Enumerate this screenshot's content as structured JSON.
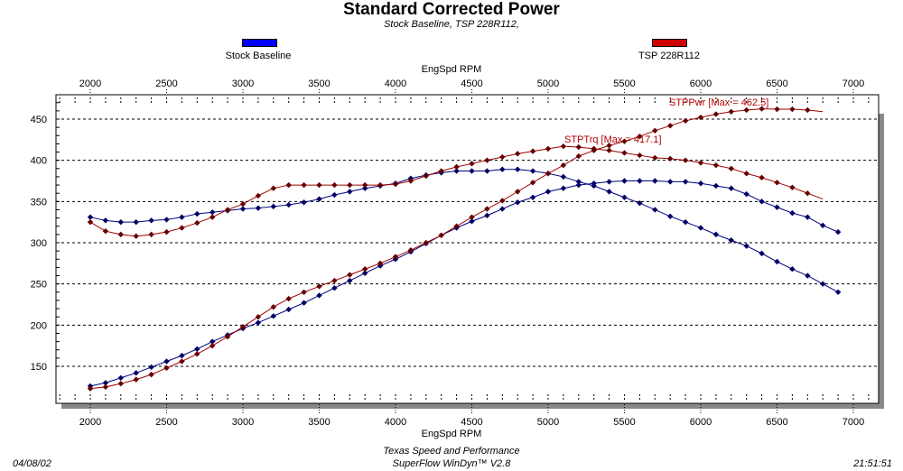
{
  "chart_data": {
    "type": "line",
    "title": "Standard Corrected Power",
    "subtitle": "Stock Baseline, TSP 228R112,",
    "xlabel": "EngSpd  RPM",
    "ylabel": "",
    "xlim": [
      1800,
      7100
    ],
    "ylim": [
      115,
      475
    ],
    "xticks": [
      2000,
      2500,
      3000,
      3500,
      4000,
      4500,
      5000,
      5500,
      6000,
      6500,
      7000
    ],
    "yticks": [
      150,
      200,
      250,
      300,
      350,
      400,
      450
    ],
    "grid": "horizontal dashed",
    "legend": [
      {
        "name": "Stock Baseline",
        "color": "#0000ff"
      },
      {
        "name": "TSP 228R112",
        "color": "#cc0000"
      }
    ],
    "annotations": [
      {
        "text": "STPPwr [Max = 462.5]",
        "color": "#b00000"
      },
      {
        "text": "STPTrq [Max = 417.1]",
        "color": "#b00000"
      }
    ],
    "series": [
      {
        "name": "Stock Baseline",
        "quantity": "STPTrq",
        "color": "#000066",
        "x_start": 2000,
        "x_step": 100,
        "values": [
          331,
          327,
          325,
          325,
          327,
          328,
          331,
          335,
          337,
          339,
          341,
          342,
          344,
          346,
          349,
          353,
          358,
          362,
          366,
          369,
          372,
          378,
          382,
          385,
          387,
          387,
          387,
          389,
          389,
          387,
          384,
          380,
          374,
          369,
          362,
          355,
          348,
          340,
          332,
          325,
          318,
          310,
          303,
          296,
          287,
          277,
          268,
          260,
          250,
          240
        ]
      },
      {
        "name": "Stock Baseline",
        "quantity": "STPPwr",
        "color": "#000066",
        "x_start": 2000,
        "x_step": 100,
        "values": [
          126,
          130,
          136,
          142,
          149,
          156,
          163,
          171,
          180,
          188,
          196,
          203,
          211,
          219,
          227,
          236,
          245,
          254,
          263,
          272,
          280,
          289,
          299,
          309,
          318,
          326,
          333,
          341,
          349,
          355,
          362,
          366,
          370,
          372,
          374,
          375,
          375,
          375,
          374,
          374,
          372,
          369,
          366,
          359,
          350,
          343,
          336,
          331,
          321,
          313
        ]
      },
      {
        "name": "TSP 228R112",
        "quantity": "STPTrq",
        "color": "#660000",
        "x_start": 2000,
        "x_step": 100,
        "values": [
          325,
          314,
          310,
          308,
          310,
          313,
          318,
          324,
          331,
          340,
          347,
          357,
          366,
          370,
          370,
          370,
          370,
          370,
          370,
          370,
          371,
          375,
          381,
          387,
          392,
          396,
          400,
          404,
          408,
          411,
          414,
          417,
          416,
          414,
          412,
          409,
          406,
          403,
          402,
          400,
          397,
          394,
          390,
          384,
          379,
          373,
          367,
          360,
          353
        ]
      },
      {
        "name": "TSP 228R112",
        "quantity": "STPPwr",
        "color": "#660000",
        "x_start": 2000,
        "x_step": 100,
        "values": [
          123,
          125,
          129,
          134,
          140,
          148,
          156,
          165,
          175,
          186,
          198,
          210,
          222,
          232,
          240,
          247,
          254,
          261,
          268,
          275,
          283,
          291,
          300,
          309,
          320,
          331,
          341,
          351,
          362,
          373,
          384,
          394,
          405,
          412,
          418,
          423,
          429,
          436,
          442,
          448,
          452,
          456,
          459,
          461,
          462.5,
          462,
          462,
          461,
          459
        ]
      }
    ]
  },
  "footer": {
    "date": "04/08/02",
    "company": "Texas Speed and Performance",
    "software": "SuperFlow WinDyn™ V2.8",
    "time": "21:51:51"
  }
}
